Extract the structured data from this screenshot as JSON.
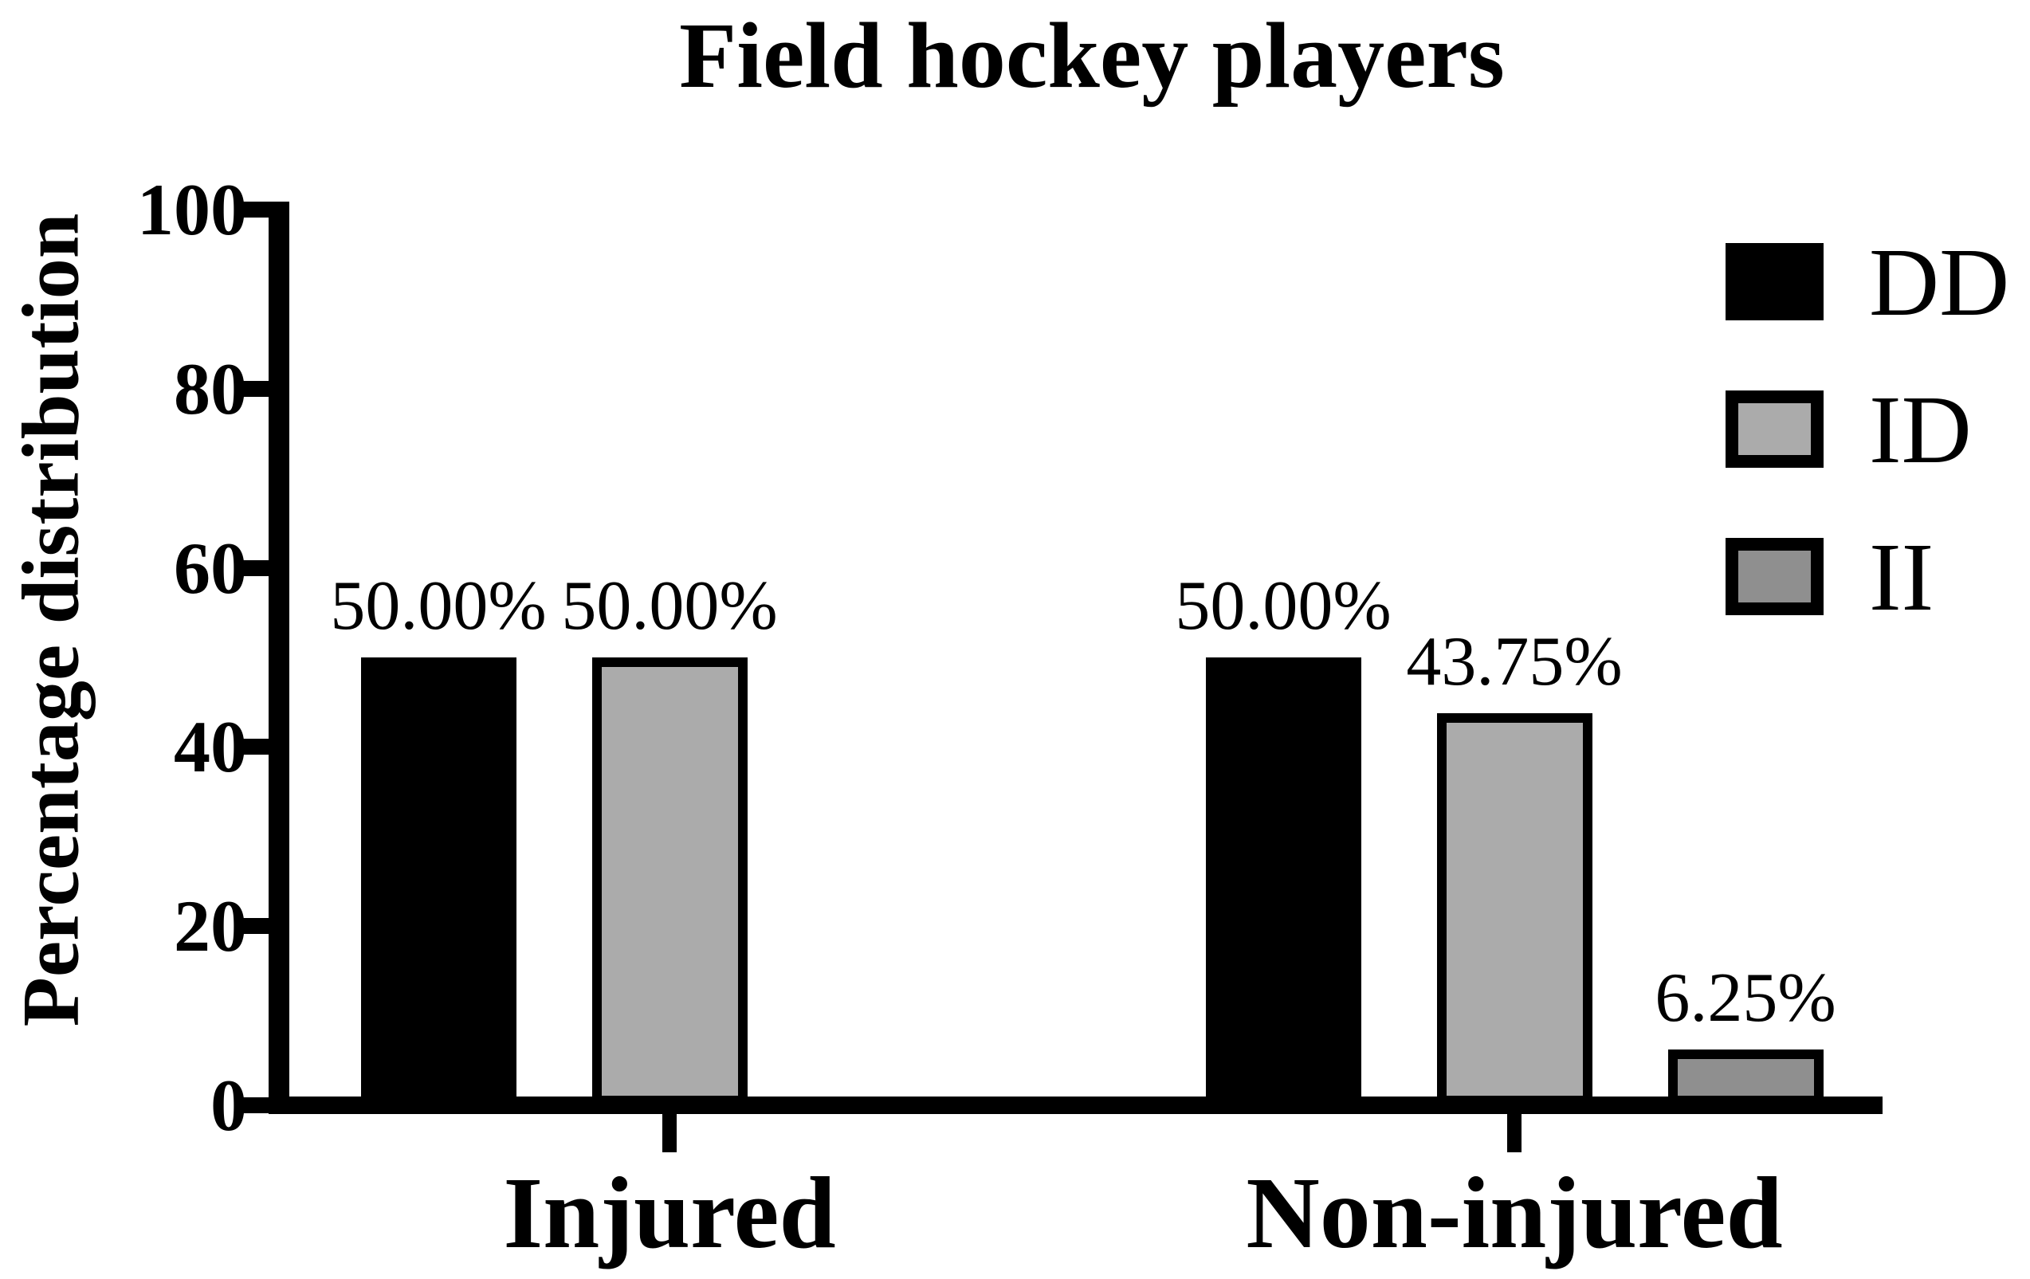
{
  "chart_data": {
    "type": "bar",
    "title": "Field hockey players",
    "ylabel": "Percentage distribution",
    "xlabel": "",
    "ylim": [
      0,
      100
    ],
    "yticks": [
      100,
      80,
      60,
      40,
      20,
      0
    ],
    "grid": false,
    "legend_position": "top-right",
    "categories": [
      "Injured",
      "Non-injured"
    ],
    "series": [
      {
        "name": "DD",
        "color": "#000000",
        "values": [
          50.0,
          50.0
        ],
        "data_labels": [
          "50.00%",
          "50.00%"
        ]
      },
      {
        "name": "ID",
        "color": "#ababab",
        "values": [
          50.0,
          43.75
        ],
        "data_labels": [
          "50.00%",
          "43.75%"
        ]
      },
      {
        "name": "II",
        "color": "#8f8f8f",
        "values": [
          0,
          6.25
        ],
        "data_labels": [
          null,
          "6.25%"
        ]
      }
    ],
    "bar_border_color": "#000000",
    "axis_color": "#000000",
    "background": "#ffffff"
  },
  "legend": [
    {
      "label": "DD",
      "color": "#000000"
    },
    {
      "label": "ID",
      "color": "#ababab"
    },
    {
      "label": "II",
      "color": "#8f8f8f"
    }
  ]
}
